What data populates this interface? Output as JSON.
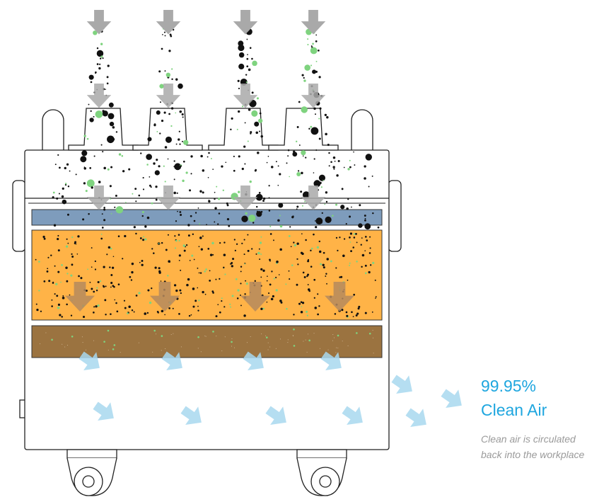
{
  "callout": {
    "percentage": "99.95%",
    "label": "Clean Air",
    "caption": [
      "Clean air is circulated",
      "back into the workplace"
    ]
  }
}
